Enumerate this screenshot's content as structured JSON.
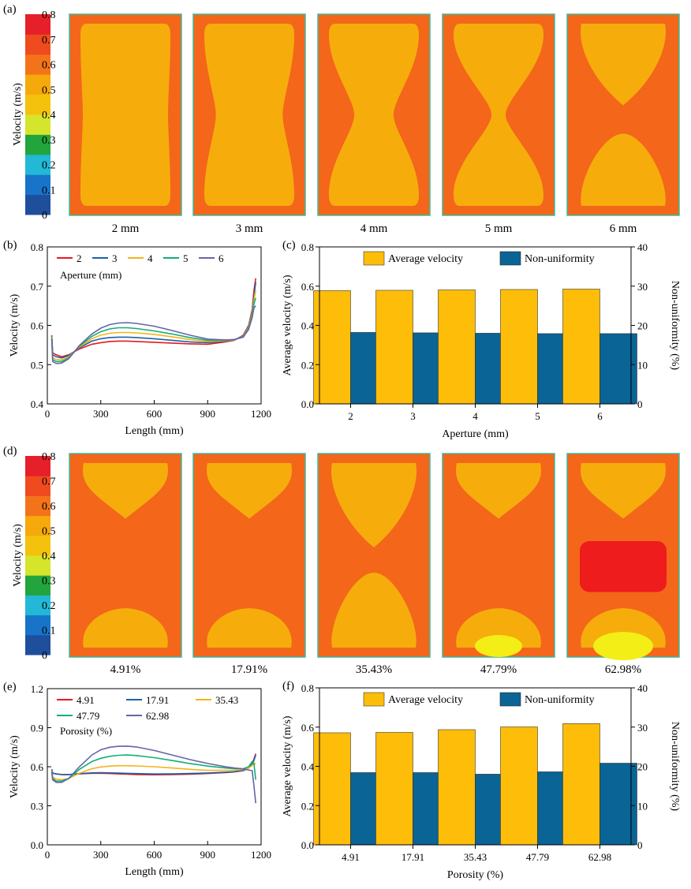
{
  "colors": {
    "scale": [
      "#1f4e9c",
      "#1874c9",
      "#22b8d6",
      "#22a53c",
      "#d5e52c",
      "#f4c20d",
      "#f6a90b",
      "#f3731a",
      "#ef4b1e",
      "#e5202a"
    ],
    "field_outer": "#f4661a",
    "field_inner": "#f6ad0c",
    "hot": "#ee1c1c",
    "yellow": "#f2ee16",
    "aperture_series": [
      "#e8181f",
      "#1b62a8",
      "#f6b21a",
      "#12b072",
      "#6464a8"
    ],
    "bar_avg": "#fdbd09",
    "bar_nonuni": "#0a6496"
  },
  "panels": {
    "a": {
      "label": "(a)",
      "colorbar": {
        "title": "Velocity (m/s)",
        "ticks": [
          "0",
          "0.1",
          "0.2",
          "0.3",
          "0.4",
          "0.5",
          "0.6",
          "0.7",
          "0.8"
        ]
      },
      "contours": [
        {
          "label": "2 mm",
          "neck": 0.0
        },
        {
          "label": "3 mm",
          "neck": 0.22
        },
        {
          "label": "4 mm",
          "neck": 0.55
        },
        {
          "label": "5 mm",
          "neck": 0.85
        },
        {
          "label": "6 mm",
          "neck": 1.0
        }
      ]
    },
    "d": {
      "label": "(d)",
      "colorbar": {
        "title": "Velocity (m/s)",
        "ticks": [
          "0",
          "0.1",
          "0.2",
          "0.3",
          "0.4",
          "0.5",
          "0.6",
          "0.7",
          "0.8"
        ]
      },
      "contours": [
        {
          "label": "4.91%",
          "neck": 0.0
        },
        {
          "label": "17.91%",
          "neck": 0.05
        },
        {
          "label": "35.43%",
          "neck": 1.0
        },
        {
          "label": "47.79%",
          "neck": 1.0
        },
        {
          "label": "62.98%",
          "neck": 1.0
        }
      ]
    }
  },
  "chart_data": [
    {
      "id": "b",
      "panel_label": "(b)",
      "type": "line",
      "xlabel": "Length (mm)",
      "ylabel": "Velocity (m/s)",
      "xlim": [
        0,
        1200
      ],
      "ylim": [
        0.4,
        0.8
      ],
      "xticks": [
        "0",
        "300",
        "600",
        "900",
        "1200"
      ],
      "yticks": [
        "0.4",
        "0.5",
        "0.6",
        "0.7",
        "0.8"
      ],
      "legend_title": "Aperture (mm)",
      "legend_position": "top-left",
      "x": [
        25,
        30,
        50,
        80,
        120,
        180,
        250,
        300,
        350,
        400,
        450,
        500,
        600,
        700,
        800,
        900,
        1000,
        1050,
        1100,
        1130,
        1150,
        1160,
        1170
      ],
      "series": [
        {
          "name": "2",
          "values": [
            0.575,
            0.53,
            0.525,
            0.52,
            0.525,
            0.54,
            0.552,
            0.556,
            0.559,
            0.56,
            0.56,
            0.559,
            0.557,
            0.555,
            0.553,
            0.552,
            0.558,
            0.562,
            0.575,
            0.6,
            0.64,
            0.69,
            0.72
          ]
        },
        {
          "name": "3",
          "values": [
            0.572,
            0.525,
            0.52,
            0.517,
            0.523,
            0.543,
            0.56,
            0.566,
            0.569,
            0.57,
            0.57,
            0.569,
            0.566,
            0.562,
            0.558,
            0.556,
            0.56,
            0.563,
            0.573,
            0.597,
            0.635,
            0.675,
            0.71
          ]
        },
        {
          "name": "4",
          "values": [
            0.57,
            0.518,
            0.513,
            0.512,
            0.52,
            0.545,
            0.566,
            0.575,
            0.58,
            0.582,
            0.582,
            0.581,
            0.577,
            0.571,
            0.564,
            0.559,
            0.561,
            0.563,
            0.572,
            0.595,
            0.63,
            0.665,
            0.69
          ]
        },
        {
          "name": "5",
          "values": [
            0.568,
            0.513,
            0.508,
            0.508,
            0.517,
            0.547,
            0.572,
            0.584,
            0.591,
            0.594,
            0.594,
            0.592,
            0.586,
            0.578,
            0.569,
            0.562,
            0.562,
            0.564,
            0.571,
            0.592,
            0.625,
            0.655,
            0.67
          ]
        },
        {
          "name": "6",
          "values": [
            0.565,
            0.508,
            0.503,
            0.504,
            0.515,
            0.549,
            0.578,
            0.593,
            0.602,
            0.606,
            0.607,
            0.605,
            0.598,
            0.587,
            0.575,
            0.565,
            0.563,
            0.564,
            0.57,
            0.59,
            0.62,
            0.645,
            0.65
          ]
        }
      ]
    },
    {
      "id": "c",
      "panel_label": "(c)",
      "type": "bar",
      "xlabel": "Aperture (mm)",
      "ylabel": "Average velocity (m/s)",
      "y2label": "Non-uniformity (%)",
      "categories": [
        "2",
        "3",
        "4",
        "5",
        "6"
      ],
      "ylim": [
        0,
        0.8
      ],
      "y2lim": [
        0,
        40
      ],
      "yticks": [
        "0.0",
        "0.2",
        "0.4",
        "0.6",
        "0.8"
      ],
      "y2ticks": [
        "0",
        "10",
        "20",
        "30",
        "40"
      ],
      "legend_position": "top",
      "series": [
        {
          "name": "Average velocity",
          "axis": "left",
          "values": [
            0.577,
            0.579,
            0.581,
            0.583,
            0.585
          ]
        },
        {
          "name": "Non-uniformity",
          "axis": "right",
          "values": [
            18.2,
            18.1,
            18.0,
            17.9,
            17.9
          ]
        }
      ]
    },
    {
      "id": "e",
      "panel_label": "(e)",
      "type": "line",
      "xlabel": "Length (mm)",
      "ylabel": "Velocity (m/s)",
      "xlim": [
        0,
        1200
      ],
      "ylim": [
        0.0,
        1.2
      ],
      "xticks": [
        "0",
        "300",
        "600",
        "900",
        "1200"
      ],
      "yticks": [
        "0.0",
        "0.3",
        "0.6",
        "0.9",
        "1.2"
      ],
      "legend_title": "Porosity (%)",
      "legend_position": "top-left",
      "x": [
        25,
        30,
        50,
        80,
        120,
        180,
        250,
        300,
        350,
        400,
        450,
        500,
        600,
        700,
        800,
        900,
        1000,
        1050,
        1100,
        1130,
        1150,
        1160,
        1170
      ],
      "series": [
        {
          "name": "4.91",
          "values": [
            0.58,
            0.55,
            0.545,
            0.54,
            0.54,
            0.545,
            0.55,
            0.55,
            0.548,
            0.545,
            0.543,
            0.54,
            0.538,
            0.54,
            0.543,
            0.548,
            0.555,
            0.56,
            0.57,
            0.59,
            0.62,
            0.66,
            0.7
          ]
        },
        {
          "name": "17.91",
          "values": [
            0.58,
            0.55,
            0.545,
            0.54,
            0.54,
            0.547,
            0.553,
            0.554,
            0.553,
            0.551,
            0.549,
            0.547,
            0.544,
            0.545,
            0.548,
            0.552,
            0.558,
            0.562,
            0.572,
            0.59,
            0.62,
            0.65,
            0.69
          ]
        },
        {
          "name": "35.43",
          "values": [
            0.57,
            0.52,
            0.505,
            0.5,
            0.51,
            0.55,
            0.585,
            0.598,
            0.605,
            0.608,
            0.608,
            0.606,
            0.6,
            0.59,
            0.58,
            0.573,
            0.572,
            0.573,
            0.578,
            0.59,
            0.61,
            0.63,
            0.62
          ]
        },
        {
          "name": "47.79",
          "values": [
            0.565,
            0.51,
            0.49,
            0.49,
            0.51,
            0.58,
            0.64,
            0.665,
            0.68,
            0.688,
            0.69,
            0.686,
            0.67,
            0.648,
            0.625,
            0.605,
            0.59,
            0.585,
            0.585,
            0.6,
            0.64,
            0.62,
            0.5
          ]
        },
        {
          "name": "62.98",
          "values": [
            0.56,
            0.5,
            0.48,
            0.48,
            0.51,
            0.6,
            0.69,
            0.73,
            0.75,
            0.757,
            0.758,
            0.752,
            0.725,
            0.69,
            0.655,
            0.625,
            0.6,
            0.59,
            0.583,
            0.575,
            0.57,
            0.45,
            0.32
          ]
        }
      ]
    },
    {
      "id": "f",
      "panel_label": "(f)",
      "type": "bar",
      "xlabel": "Porosity (%)",
      "ylabel": "Average velocity (m/s)",
      "y2label": "Non-uniformity (%)",
      "categories": [
        "4.91",
        "17.91",
        "35.43",
        "47.79",
        "62.98"
      ],
      "ylim": [
        0,
        0.8
      ],
      "y2lim": [
        0,
        40
      ],
      "yticks": [
        "0.0",
        "0.2",
        "0.4",
        "0.6",
        "0.8"
      ],
      "y2ticks": [
        "0",
        "10",
        "20",
        "30",
        "40"
      ],
      "legend_position": "top",
      "series": [
        {
          "name": "Average velocity",
          "axis": "left",
          "values": [
            0.571,
            0.573,
            0.587,
            0.601,
            0.618
          ]
        },
        {
          "name": "Non-uniformity",
          "axis": "right",
          "values": [
            18.4,
            18.4,
            18.0,
            18.6,
            20.8
          ]
        }
      ]
    }
  ]
}
